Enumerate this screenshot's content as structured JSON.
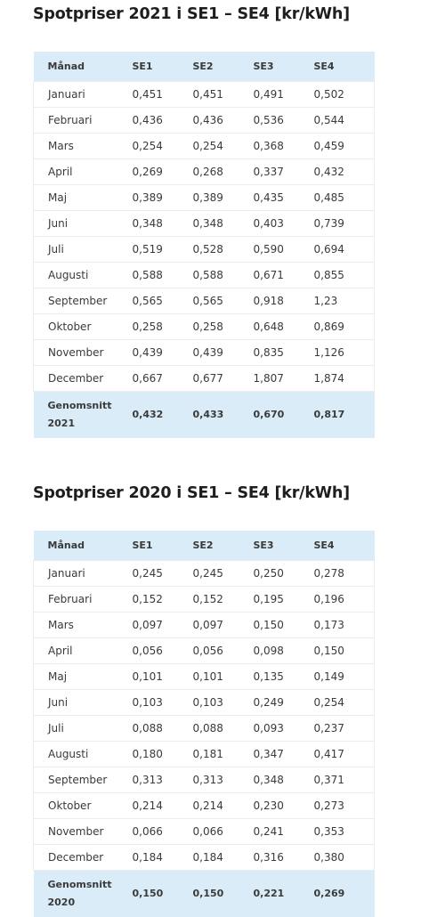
{
  "tables": [
    {
      "title": "Spotpriser 2021 i SE1 – SE4 [kr/kWh]",
      "headers": [
        "Månad",
        "SE1",
        "SE2",
        "SE3",
        "SE4"
      ],
      "rows": [
        [
          "Januari",
          "0,451",
          "0,451",
          "0,491",
          "0,502"
        ],
        [
          "Februari",
          "0,436",
          "0,436",
          "0,536",
          "0,544"
        ],
        [
          "Mars",
          "0,254",
          "0,254",
          "0,368",
          "0,459"
        ],
        [
          "April",
          "0,269",
          "0,268",
          "0,337",
          "0,432"
        ],
        [
          "Maj",
          "0,389",
          "0,389",
          "0,435",
          "0,485"
        ],
        [
          "Juni",
          "0,348",
          "0,348",
          "0,403",
          "0,739"
        ],
        [
          "Juli",
          "0,519",
          "0,528",
          "0,590",
          "0,694"
        ],
        [
          "Augusti",
          "0,588",
          "0,588",
          "0,671",
          "0,855"
        ],
        [
          "September",
          "0,565",
          "0,565",
          "0,918",
          "1,23"
        ],
        [
          "Oktober",
          "0,258",
          "0,258",
          "0,648",
          "0,869"
        ],
        [
          "November",
          "0,439",
          "0,439",
          "0,835",
          "1,126"
        ],
        [
          "December",
          "0,667",
          "0,677",
          "1,807",
          "1,874"
        ]
      ],
      "average": {
        "label_line1": "Genomsnitt",
        "label_line2": "2021",
        "values": [
          "0,432",
          "0,433",
          "0,670",
          "0,817"
        ]
      }
    },
    {
      "title": "Spotpriser 2020 i SE1 – SE4 [kr/kWh]",
      "headers": [
        "Månad",
        "SE1",
        "SE2",
        "SE3",
        "SE4"
      ],
      "rows": [
        [
          "Januari",
          "0,245",
          "0,245",
          "0,250",
          "0,278"
        ],
        [
          "Februari",
          "0,152",
          "0,152",
          "0,195",
          "0,196"
        ],
        [
          "Mars",
          "0,097",
          "0,097",
          "0,150",
          "0,173"
        ],
        [
          "April",
          "0,056",
          "0,056",
          "0,098",
          "0,150"
        ],
        [
          "Maj",
          "0,101",
          "0,101",
          "0,135",
          "0,149"
        ],
        [
          "Juni",
          "0,103",
          "0,103",
          "0,249",
          "0,254"
        ],
        [
          "Juli",
          "0,088",
          "0,088",
          "0,093",
          "0,237"
        ],
        [
          "Augusti",
          "0,180",
          "0,181",
          "0,347",
          "0,417"
        ],
        [
          "September",
          "0,313",
          "0,313",
          "0,348",
          "0,371"
        ],
        [
          "Oktober",
          "0,214",
          "0,214",
          "0,230",
          "0,273"
        ],
        [
          "November",
          "0,066",
          "0,066",
          "0,241",
          "0,353"
        ],
        [
          "December",
          "0,184",
          "0,184",
          "0,316",
          "0,380"
        ]
      ],
      "average": {
        "label_line1": "Genomsnitt",
        "label_line2": "2020",
        "values": [
          "0,150",
          "0,150",
          "0,221",
          "0,269"
        ]
      }
    }
  ],
  "colors": {
    "header_bg": "#d9ecf7",
    "title_text": "#1e1e1e",
    "body_text": "#3a3a3a",
    "row_border": "#ececec"
  }
}
